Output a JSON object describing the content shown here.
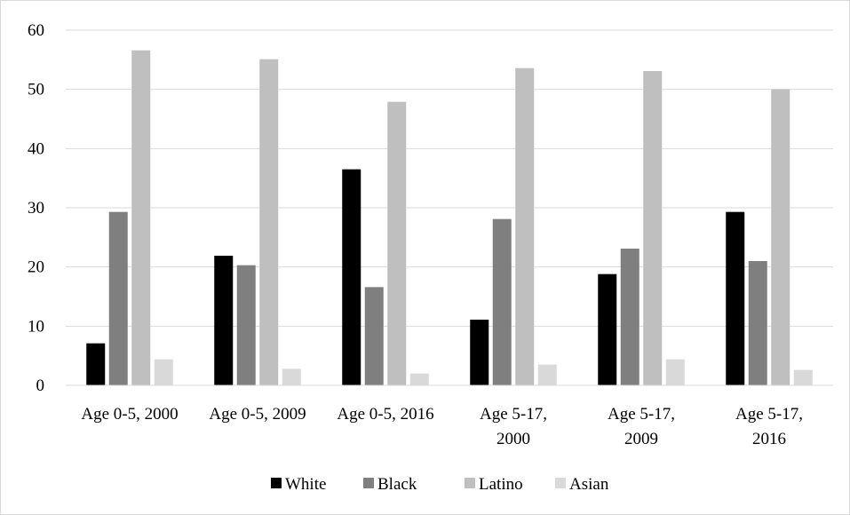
{
  "chart_data": {
    "type": "bar",
    "title": "",
    "xlabel": "",
    "ylabel": "",
    "ylim": [
      0,
      60
    ],
    "yticks": [
      0,
      10,
      20,
      30,
      40,
      50,
      60
    ],
    "grid": true,
    "legend_position": "bottom",
    "categories": [
      [
        "Age 0-5, 2000"
      ],
      [
        "Age 0-5, 2009"
      ],
      [
        "Age 0-5, 2016"
      ],
      [
        "Age 5-17,",
        "2000"
      ],
      [
        "Age 5-17,",
        "2009"
      ],
      [
        "Age 5-17,",
        "2016"
      ]
    ],
    "series": [
      {
        "name": "White",
        "color": "#000000",
        "values": [
          7.1,
          21.9,
          36.5,
          11.1,
          18.8,
          29.3
        ]
      },
      {
        "name": "Black",
        "color": "#7f7f7f",
        "values": [
          29.3,
          20.3,
          16.6,
          28.1,
          23.1,
          21.0
        ]
      },
      {
        "name": "Latino",
        "color": "#bfbfbf",
        "values": [
          56.6,
          55.1,
          47.9,
          53.6,
          53.1,
          50.0
        ]
      },
      {
        "name": "Asian",
        "color": "#d9d9d9",
        "values": [
          4.4,
          2.8,
          2.0,
          3.5,
          4.4,
          2.6
        ]
      }
    ]
  }
}
